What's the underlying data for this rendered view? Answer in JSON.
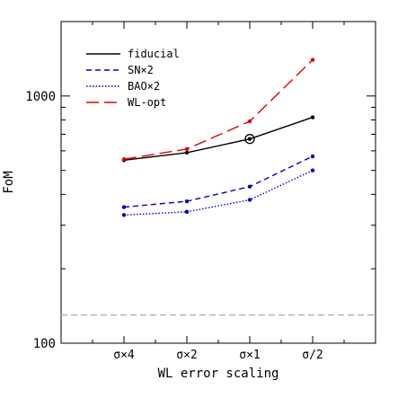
{
  "chart_data": {
    "type": "line",
    "title": "",
    "xlabel": "WL error scaling",
    "ylabel": "FoM",
    "yscale": "log",
    "ylim": [
      100,
      2000
    ],
    "xlim": [
      0,
      5
    ],
    "grid": false,
    "legend_position": "top-left",
    "categories": [
      "σ×4",
      "σ×2",
      "σ×1",
      "σ/2"
    ],
    "x": [
      1,
      2,
      3,
      4
    ],
    "y_tick_labels": [
      "100",
      "1000"
    ],
    "y_tick_values": [
      100,
      1000
    ],
    "series": [
      {
        "name": "fiducial",
        "values": [
          550,
          590,
          670,
          820
        ],
        "color": "#000000",
        "dash": "solid",
        "highlight_index": 2
      },
      {
        "name": "SN×2",
        "values": [
          355,
          375,
          430,
          570
        ],
        "color": "#0000cc",
        "dash": "dashed"
      },
      {
        "name": "BAO×2",
        "values": [
          330,
          340,
          380,
          500
        ],
        "color": "#0000cc",
        "dash": "dotted"
      },
      {
        "name": "WL-opt",
        "values": [
          555,
          610,
          790,
          1400
        ],
        "color": "#dd0000",
        "dash": "longdash"
      }
    ],
    "reference_line": {
      "value": 130,
      "color": "#aaaaaa",
      "dash": "dashed"
    }
  }
}
